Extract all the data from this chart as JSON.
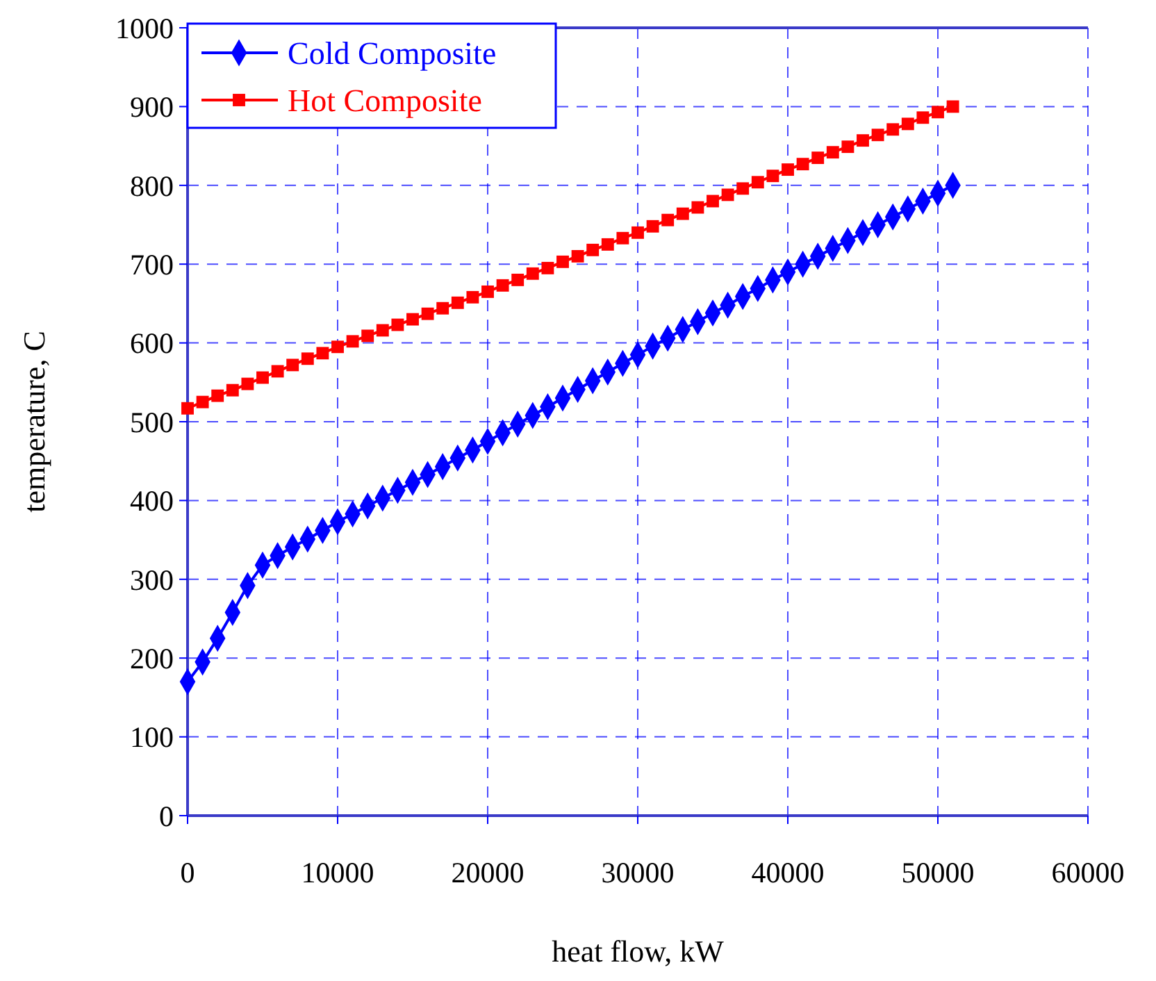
{
  "chart_data": {
    "type": "line",
    "xlabel": "heat flow, kW",
    "ylabel": "temperature, C",
    "x": [
      0,
      1000,
      2000,
      3000,
      4000,
      5000,
      6000,
      7000,
      8000,
      9000,
      10000,
      11000,
      12000,
      13000,
      14000,
      15000,
      16000,
      17000,
      18000,
      19000,
      20000,
      21000,
      22000,
      23000,
      24000,
      25000,
      26000,
      27000,
      28000,
      29000,
      30000,
      31000,
      32000,
      33000,
      34000,
      35000,
      36000,
      37000,
      38000,
      39000,
      40000,
      41000,
      42000,
      43000,
      44000,
      45000,
      46000,
      47000,
      48000,
      49000,
      50000,
      51000
    ],
    "series": [
      {
        "name": "Cold Composite",
        "color": "#0000ff",
        "marker": "diamond",
        "values": [
          170,
          195,
          225,
          258,
          292,
          318,
          330,
          341,
          351,
          362,
          373,
          383,
          393,
          403,
          413,
          423,
          433,
          443,
          454,
          464,
          475,
          486,
          497,
          508,
          519,
          530,
          541,
          552,
          563,
          574,
          585,
          596,
          606,
          617,
          627,
          638,
          648,
          659,
          669,
          680,
          690,
          700,
          710,
          720,
          730,
          740,
          750,
          760,
          770,
          780,
          790,
          800
        ]
      },
      {
        "name": "Hot Composite",
        "color": "#ff0000",
        "marker": "square",
        "values": [
          517,
          525,
          533,
          540,
          548,
          556,
          564,
          572,
          580,
          587,
          595,
          602,
          609,
          616,
          623,
          630,
          637,
          644,
          651,
          658,
          665,
          673,
          680,
          688,
          695,
          703,
          710,
          718,
          725,
          733,
          740,
          748,
          756,
          764,
          772,
          780,
          788,
          796,
          804,
          812,
          820,
          827,
          835,
          842,
          849,
          857,
          864,
          871,
          878,
          886,
          893,
          900
        ]
      }
    ],
    "xlim": [
      0,
      60000
    ],
    "xticks": [
      0,
      10000,
      20000,
      30000,
      40000,
      50000,
      60000
    ],
    "ylim": [
      0,
      1000
    ],
    "yticks": [
      0,
      100,
      200,
      300,
      400,
      500,
      600,
      700,
      800,
      900,
      1000
    ],
    "grid": true,
    "legend": "top left",
    "line_style": "solid"
  }
}
